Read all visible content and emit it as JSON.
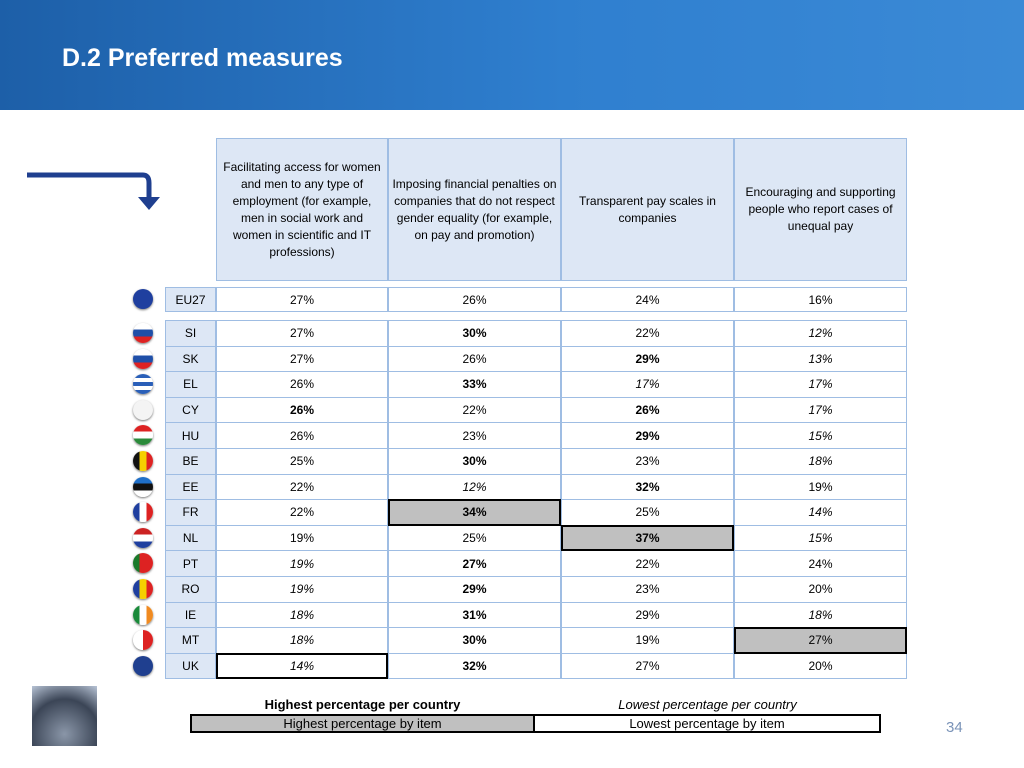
{
  "header": {
    "title": "D.2 Preferred measures"
  },
  "table": {
    "columns": [
      "Facilitating access for women and men to any type of employment (for example, men in social work and women in scientific and IT professions)",
      "Imposing financial penalties on companies that do not respect gender equality (for example, on pay and promotion)",
      "Transparent pay scales in companies",
      "Encouraging and supporting people who report cases of unequal pay"
    ],
    "eu_row": {
      "code": "EU27",
      "cells": [
        {
          "text": "27%"
        },
        {
          "text": "26%"
        },
        {
          "text": "24%"
        },
        {
          "text": "16%"
        }
      ]
    },
    "rows": [
      {
        "code": "SI",
        "cells": [
          {
            "text": "27%"
          },
          {
            "text": "30%",
            "emphasis": "bold"
          },
          {
            "text": "22%"
          },
          {
            "text": "12%",
            "emphasis": "italic"
          }
        ]
      },
      {
        "code": "SK",
        "cells": [
          {
            "text": "27%"
          },
          {
            "text": "26%"
          },
          {
            "text": "29%",
            "emphasis": "bold"
          },
          {
            "text": "13%",
            "emphasis": "italic"
          }
        ]
      },
      {
        "code": "EL",
        "cells": [
          {
            "text": "26%"
          },
          {
            "text": "33%",
            "emphasis": "bold"
          },
          {
            "text": "17%",
            "emphasis": "italic"
          },
          {
            "text": "17%",
            "emphasis": "italic"
          }
        ]
      },
      {
        "code": "CY",
        "cells": [
          {
            "text": "26%",
            "emphasis": "bold"
          },
          {
            "text": "22%"
          },
          {
            "text": "26%",
            "emphasis": "bold"
          },
          {
            "text": "17%",
            "emphasis": "italic"
          }
        ]
      },
      {
        "code": "HU",
        "cells": [
          {
            "text": "26%"
          },
          {
            "text": "23%"
          },
          {
            "text": "29%",
            "emphasis": "bold"
          },
          {
            "text": "15%",
            "emphasis": "italic"
          }
        ]
      },
      {
        "code": "BE",
        "cells": [
          {
            "text": "25%"
          },
          {
            "text": "30%",
            "emphasis": "bold"
          },
          {
            "text": "23%"
          },
          {
            "text": "18%",
            "emphasis": "italic"
          }
        ]
      },
      {
        "code": "EE",
        "cells": [
          {
            "text": "22%"
          },
          {
            "text": "12%",
            "emphasis": "italic"
          },
          {
            "text": "32%",
            "emphasis": "bold"
          },
          {
            "text": "19%"
          }
        ]
      },
      {
        "code": "FR",
        "cells": [
          {
            "text": "22%"
          },
          {
            "text": "34%",
            "emphasis": "bold",
            "box": "highest"
          },
          {
            "text": "25%"
          },
          {
            "text": "14%",
            "emphasis": "italic"
          }
        ]
      },
      {
        "code": "NL",
        "cells": [
          {
            "text": "19%"
          },
          {
            "text": "25%"
          },
          {
            "text": "37%",
            "emphasis": "bold",
            "box": "highest"
          },
          {
            "text": "15%",
            "emphasis": "italic"
          }
        ]
      },
      {
        "code": "PT",
        "cells": [
          {
            "text": "19%",
            "emphasis": "italic"
          },
          {
            "text": "27%",
            "emphasis": "bold"
          },
          {
            "text": "22%"
          },
          {
            "text": "24%"
          }
        ]
      },
      {
        "code": "RO",
        "cells": [
          {
            "text": "19%",
            "emphasis": "italic"
          },
          {
            "text": "29%",
            "emphasis": "bold"
          },
          {
            "text": "23%"
          },
          {
            "text": "20%"
          }
        ]
      },
      {
        "code": "IE",
        "cells": [
          {
            "text": "18%",
            "emphasis": "italic"
          },
          {
            "text": "31%",
            "emphasis": "bold"
          },
          {
            "text": "29%"
          },
          {
            "text": "18%",
            "emphasis": "italic"
          }
        ]
      },
      {
        "code": "MT",
        "cells": [
          {
            "text": "18%",
            "emphasis": "italic"
          },
          {
            "text": "30%",
            "emphasis": "bold"
          },
          {
            "text": "19%"
          },
          {
            "text": "27%",
            "box": "highest"
          }
        ]
      },
      {
        "code": "UK",
        "cells": [
          {
            "text": "14%",
            "emphasis": "italic",
            "box": "lowest"
          },
          {
            "text": "32%",
            "emphasis": "bold"
          },
          {
            "text": "27%"
          },
          {
            "text": "20%"
          }
        ]
      }
    ]
  },
  "legend": {
    "highest_country": "Highest percentage per country",
    "lowest_country": "Lowest percentage per country",
    "highest_item": "Highest percentage by item",
    "lowest_item": "Lowest percentage by item"
  },
  "page_number": "34"
}
